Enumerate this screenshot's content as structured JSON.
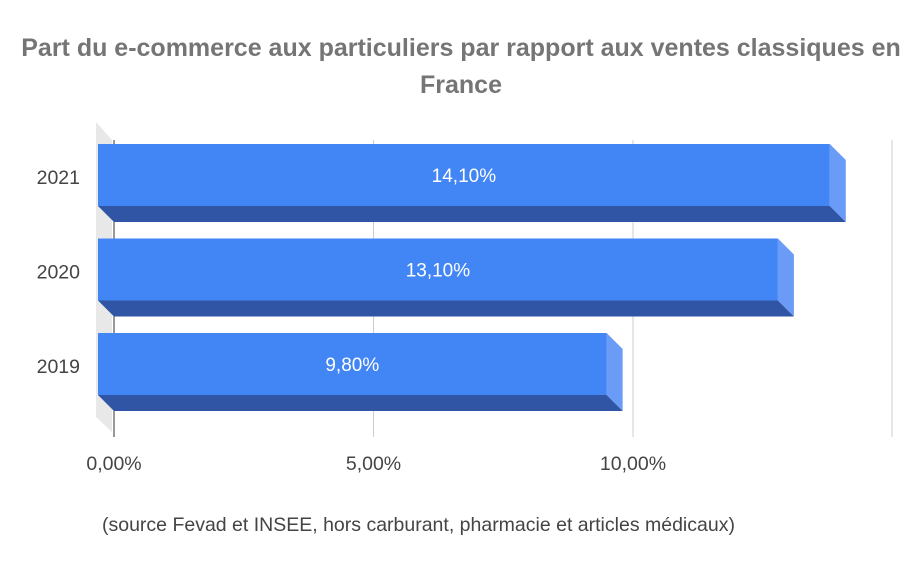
{
  "chart_data": {
    "type": "bar",
    "orientation": "horizontal",
    "three_d": true,
    "title": "Part du e-commerce aux particuliers par rapport aux ventes classiques en France",
    "categories": [
      "2021",
      "2020",
      "2019"
    ],
    "values": [
      14.1,
      13.1,
      9.8
    ],
    "data_labels": [
      "14,10%",
      "13,10%",
      "9,80%"
    ],
    "xaxis": {
      "ticks": [
        0,
        5,
        10
      ],
      "tick_labels": [
        "0,00%",
        "5,00%",
        "10,00%"
      ],
      "range": [
        0,
        15
      ]
    },
    "gridlines": true,
    "legend": "none",
    "colors": {
      "bar_front": "#4285F4",
      "bar_bottom": "#2F55A4",
      "bar_side": "#6A9BF6",
      "grid": "#CCCCCC",
      "floor": "#E8E8E8"
    }
  },
  "footnote": "(source Fevad et INSEE, hors carburant, pharmacie et articles médicaux)"
}
